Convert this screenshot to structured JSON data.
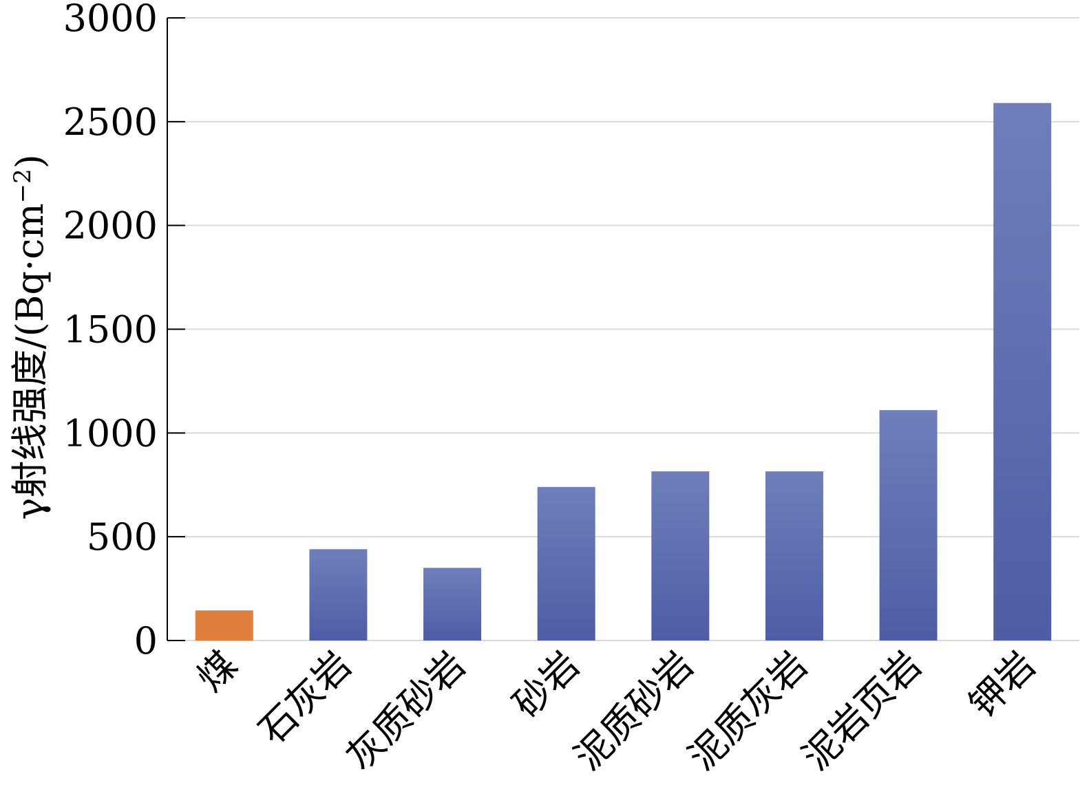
{
  "chart_data": {
    "type": "bar",
    "title": "",
    "xlabel": "",
    "ylabel": "γ射线强度/(Bq·cm",
    "ylabel_superscript": "−2",
    "ylabel_suffix": ")",
    "categories": [
      "煤",
      "石灰岩",
      "灰质砂岩",
      "砂岩",
      "泥质砂岩",
      "泥质灰岩",
      "泥岩页岩",
      "钾岩"
    ],
    "values": [
      145,
      440,
      350,
      740,
      815,
      815,
      1110,
      2590
    ],
    "ylim": [
      0,
      3000
    ],
    "yticks": [
      0,
      500,
      1000,
      1500,
      2000,
      2500,
      3000
    ],
    "grid": true,
    "legend": "none",
    "colors": {
      "highlight": "#E07E3C",
      "bar_top": "#6E7FBA",
      "bar_bottom": "#4E5DA6",
      "grid": "#D9D9D9",
      "axis": "#000000"
    }
  }
}
